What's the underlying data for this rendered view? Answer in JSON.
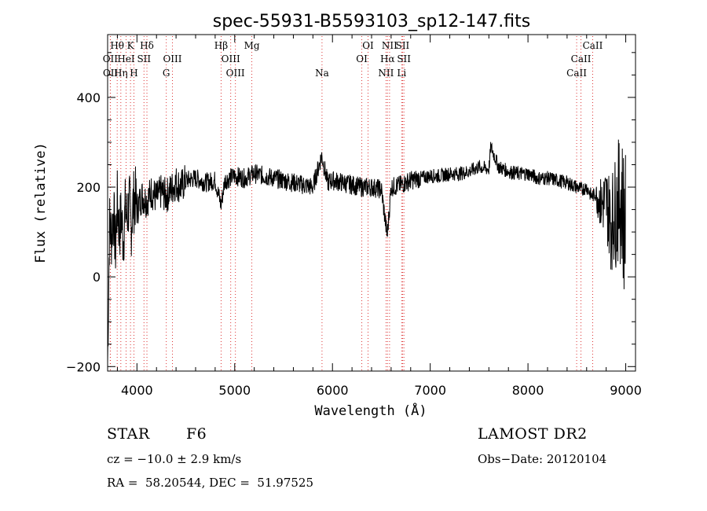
{
  "chart_data": {
    "type": "line",
    "title": "spec-55931-B5593103_sp12-147.fits",
    "xlabel": "Wavelength (Å)",
    "ylabel": "Flux (relative)",
    "xlim": [
      3700,
      9100
    ],
    "ylim": [
      -210,
      540
    ],
    "x_ticks": [
      4000,
      5000,
      6000,
      7000,
      8000,
      9000
    ],
    "y_ticks": [
      -200,
      0,
      200,
      400
    ],
    "grid": false,
    "series": [
      {
        "name": "",
        "x": [
          3700,
          3720,
          3740,
          3760,
          3780,
          3800,
          3820,
          3840,
          3860,
          3880,
          3900,
          3920,
          3940,
          3960,
          3980,
          4000,
          4050,
          4100,
          4150,
          4200,
          4250,
          4300,
          4350,
          4400,
          4450,
          4500,
          4600,
          4700,
          4800,
          4860,
          4900,
          5000,
          5100,
          5200,
          5300,
          5400,
          5500,
          5600,
          5700,
          5800,
          5890,
          5950,
          6000,
          6100,
          6200,
          6300,
          6400,
          6500,
          6560,
          6600,
          6700,
          6800,
          6900,
          7000,
          7100,
          7200,
          7300,
          7400,
          7500,
          7600,
          7620,
          7700,
          7800,
          7900,
          8000,
          8100,
          8200,
          8300,
          8400,
          8500,
          8550,
          8600,
          8650,
          8700,
          8750,
          8800,
          8850,
          8900,
          8950,
          9000
        ],
        "y": [
          -190,
          120,
          90,
          150,
          60,
          170,
          100,
          140,
          80,
          150,
          130,
          170,
          110,
          160,
          180,
          150,
          180,
          170,
          190,
          175,
          190,
          180,
          195,
          210,
          200,
          215,
          220,
          210,
          215,
          160,
          215,
          225,
          220,
          230,
          225,
          220,
          215,
          210,
          205,
          200,
          270,
          210,
          215,
          210,
          205,
          200,
          200,
          195,
          90,
          200,
          205,
          215,
          220,
          225,
          225,
          230,
          230,
          235,
          245,
          240,
          290,
          245,
          235,
          230,
          230,
          220,
          220,
          215,
          210,
          200,
          195,
          200,
          180,
          185,
          160,
          170,
          120,
          150,
          180,
          100
        ]
      }
    ],
    "lines": [
      {
        "name": "Hθ",
        "x": 3798,
        "row": 1
      },
      {
        "name": "OII",
        "x": 3727,
        "row": 2
      },
      {
        "name": "OII",
        "x": 3729,
        "row": 3
      },
      {
        "name": "Hη",
        "x": 3835,
        "row": 3
      },
      {
        "name": "K",
        "x": 3934,
        "row": 1
      },
      {
        "name": "HeI",
        "x": 3889,
        "row": 2
      },
      {
        "name": "H",
        "x": 3969,
        "row": 3
      },
      {
        "name": "SII",
        "x": 4072,
        "row": 2
      },
      {
        "name": "Hδ",
        "x": 4102,
        "row": 1
      },
      {
        "name": "OIII",
        "x": 4363,
        "row": 2
      },
      {
        "name": "G",
        "x": 4300,
        "row": 3
      },
      {
        "name": "Hβ",
        "x": 4861,
        "row": 1
      },
      {
        "name": "OIII",
        "x": 4959,
        "row": 2
      },
      {
        "name": "OIII",
        "x": 5007,
        "row": 3
      },
      {
        "name": "Mg",
        "x": 5175,
        "row": 1
      },
      {
        "name": "Na",
        "x": 5893,
        "row": 3
      },
      {
        "name": "OI",
        "x": 6364,
        "row": 1
      },
      {
        "name": "OI",
        "x": 6300,
        "row": 2
      },
      {
        "name": "NII",
        "x": 6584,
        "row": 1
      },
      {
        "name": "Hα",
        "x": 6563,
        "row": 2
      },
      {
        "name": "NII",
        "x": 6548,
        "row": 3
      },
      {
        "name": "SII",
        "x": 6717,
        "row": 1
      },
      {
        "name": "SII",
        "x": 6731,
        "row": 2
      },
      {
        "name": "Li",
        "x": 6708,
        "row": 3
      },
      {
        "name": "CaII",
        "x": 8662,
        "row": 1
      },
      {
        "name": "CaII",
        "x": 8542,
        "row": 2
      },
      {
        "name": "CaII",
        "x": 8498,
        "row": 3
      }
    ]
  },
  "info": {
    "class": "STAR",
    "subclass": "F6",
    "survey": "LAMOST DR2",
    "cz": "cz = −10.0 ± 2.9 km/s",
    "obs_date": "Obs−Date: 20120104",
    "coords": "RA =  58.20544, DEC =  51.97525"
  }
}
